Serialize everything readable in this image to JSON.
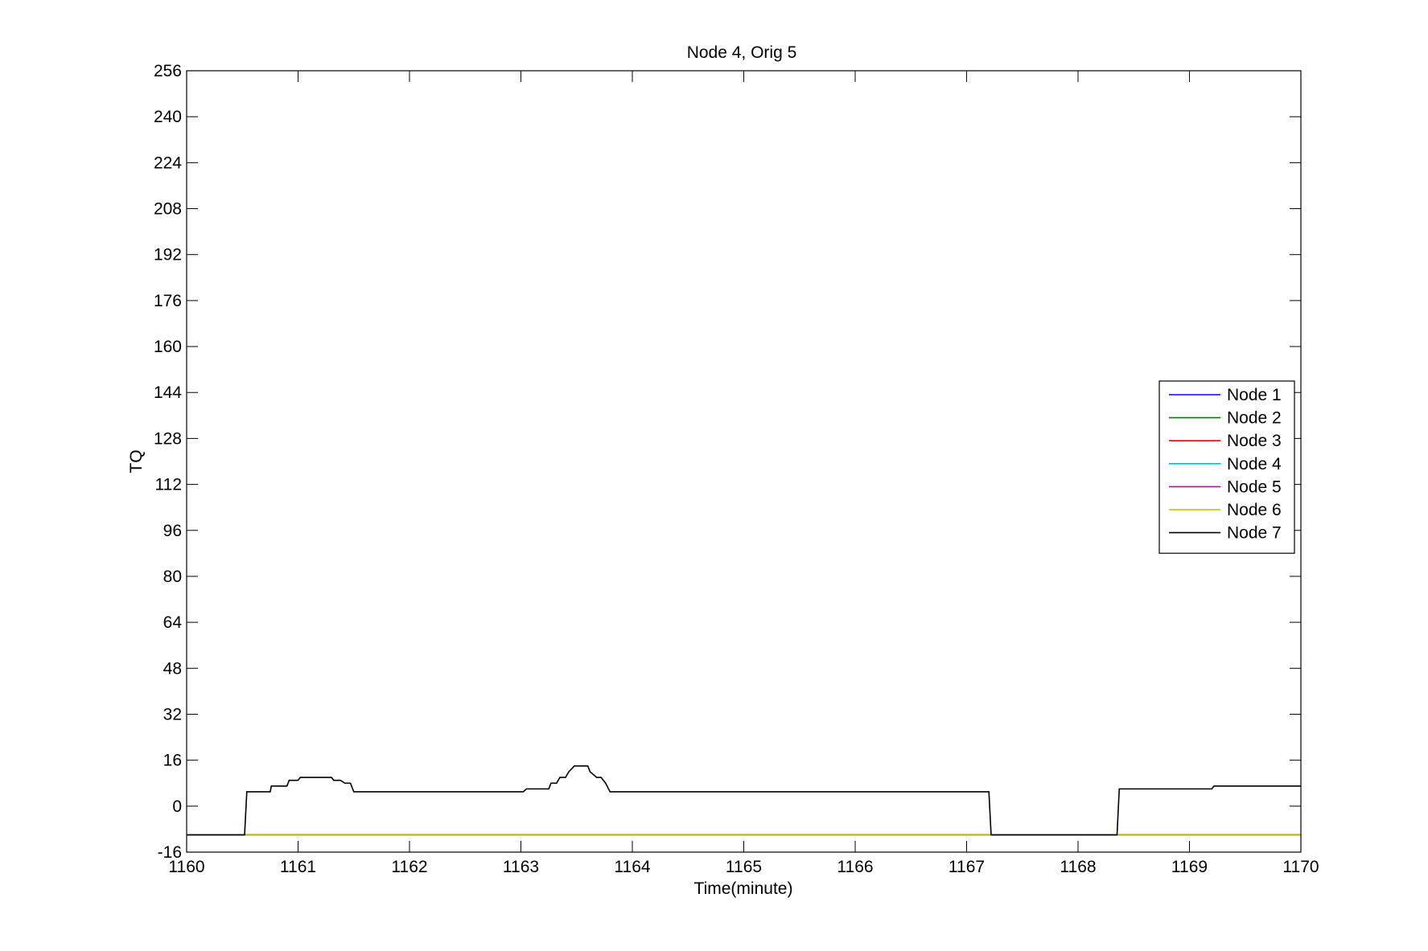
{
  "chart_data": {
    "type": "line",
    "title": "Node 4, Orig 5",
    "xlabel": "Time(minute)",
    "ylabel": "TQ",
    "xlim": [
      1160,
      1170
    ],
    "ylim": [
      -16,
      256
    ],
    "xticks": [
      1160,
      1161,
      1162,
      1163,
      1164,
      1165,
      1166,
      1167,
      1168,
      1169,
      1170
    ],
    "xtick_labels": [
      "1160",
      "1161",
      "1162",
      "1163",
      "1164",
      "1165",
      "1166",
      "1167",
      "1168",
      "1169",
      "1170"
    ],
    "yticks": [
      -16,
      0,
      16,
      32,
      48,
      64,
      80,
      96,
      112,
      128,
      144,
      160,
      176,
      192,
      208,
      224,
      240,
      256
    ],
    "ytick_labels": [
      "-16",
      "0",
      "16",
      "32",
      "48",
      "64",
      "80",
      "96",
      "112",
      "128",
      "144",
      "160",
      "176",
      "192",
      "208",
      "224",
      "240",
      "256"
    ],
    "grid": false,
    "legend_position": "right",
    "series": [
      {
        "name": "Node  1",
        "color": "#0000ff",
        "x": [
          1160,
          1170
        ],
        "y": [
          -10,
          -10
        ]
      },
      {
        "name": "Node  2",
        "color": "#008000",
        "x": [
          1160,
          1170
        ],
        "y": [
          -10,
          -10
        ]
      },
      {
        "name": "Node  3",
        "color": "#ff0000",
        "x": [
          1160,
          1170
        ],
        "y": [
          -10,
          -10
        ]
      },
      {
        "name": "Node  4",
        "color": "#00bfbf",
        "x": [
          1160,
          1170
        ],
        "y": [
          -10,
          -10
        ]
      },
      {
        "name": "Node  5",
        "color": "#bf00bf",
        "x": [
          1160,
          1170
        ],
        "y": [
          -10,
          -10
        ]
      },
      {
        "name": "Node  6",
        "color": "#bfbf00",
        "x": [
          1160,
          1170
        ],
        "y": [
          -10,
          -10
        ]
      },
      {
        "name": "Node  7",
        "color": "#000000",
        "x": [
          1160,
          1160.52,
          1160.54,
          1160.75,
          1160.76,
          1160.9,
          1160.92,
          1161.0,
          1161.02,
          1161.3,
          1161.32,
          1161.38,
          1161.42,
          1161.47,
          1161.5,
          1163.02,
          1163.05,
          1163.25,
          1163.27,
          1163.32,
          1163.35,
          1163.4,
          1163.43,
          1163.48,
          1163.6,
          1163.62,
          1163.68,
          1163.72,
          1163.76,
          1163.8,
          1167.2,
          1167.22,
          1168.35,
          1168.37,
          1169.2,
          1169.22,
          1170
        ],
        "y": [
          -10,
          -10,
          5,
          5,
          7,
          7,
          9,
          9,
          10,
          10,
          9,
          9,
          8,
          8,
          5,
          5,
          6,
          6,
          8,
          8,
          10,
          10,
          12,
          14,
          14,
          12,
          10,
          10,
          8,
          5,
          5,
          -10,
          -10,
          6,
          6,
          7,
          7
        ]
      }
    ]
  }
}
